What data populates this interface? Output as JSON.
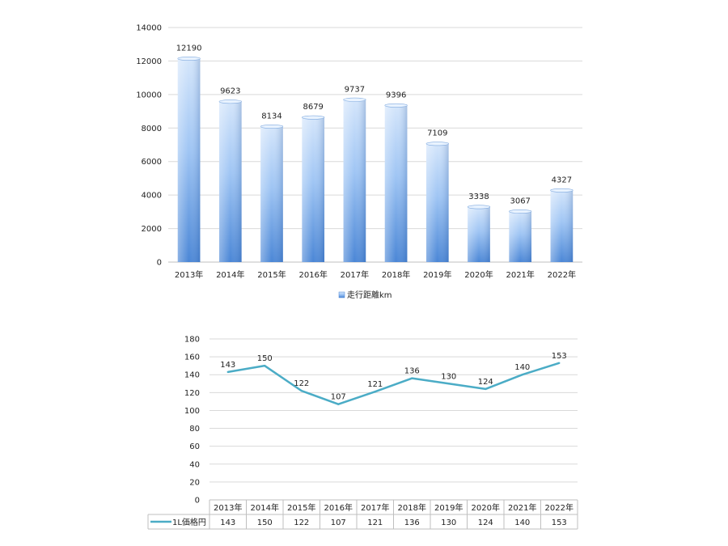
{
  "chart_data": [
    {
      "type": "bar",
      "categories": [
        "2013年",
        "2014年",
        "2015年",
        "2016年",
        "2017年",
        "2018年",
        "2019年",
        "2020年",
        "2021年",
        "2022年"
      ],
      "series": [
        {
          "name": "走行距離km",
          "values": [
            12190,
            9623,
            8134,
            8679,
            9737,
            9396,
            7109,
            3338,
            3067,
            4327
          ]
        }
      ],
      "ylim": [
        0,
        14000
      ],
      "yticks": [
        0,
        2000,
        4000,
        6000,
        8000,
        10000,
        12000,
        14000
      ],
      "grid": true,
      "legend": "bottom",
      "data_labels": true,
      "colors": {
        "bar_top": "#cfe2fb",
        "bar_mid": "#9cc3f3",
        "bar_bottom": "#4d8ad8",
        "grid": "#d9d9d9",
        "axis": "#bfbfbf"
      }
    },
    {
      "type": "line",
      "categories": [
        "2013年",
        "2014年",
        "2015年",
        "2016年",
        "2017年",
        "2018年",
        "2019年",
        "2020年",
        "2021年",
        "2022年"
      ],
      "series": [
        {
          "name": "1L価格円",
          "values": [
            143,
            150,
            122,
            107,
            121,
            136,
            130,
            124,
            140,
            153
          ]
        }
      ],
      "ylim": [
        0,
        180
      ],
      "yticks": [
        0,
        20,
        40,
        60,
        80,
        100,
        120,
        140,
        160,
        180
      ],
      "grid": true,
      "legend": "data-table",
      "data_labels": true,
      "data_table": true,
      "colors": {
        "line": "#4bacc6",
        "grid": "#d9d9d9",
        "table_border": "#bfbfbf"
      }
    }
  ]
}
